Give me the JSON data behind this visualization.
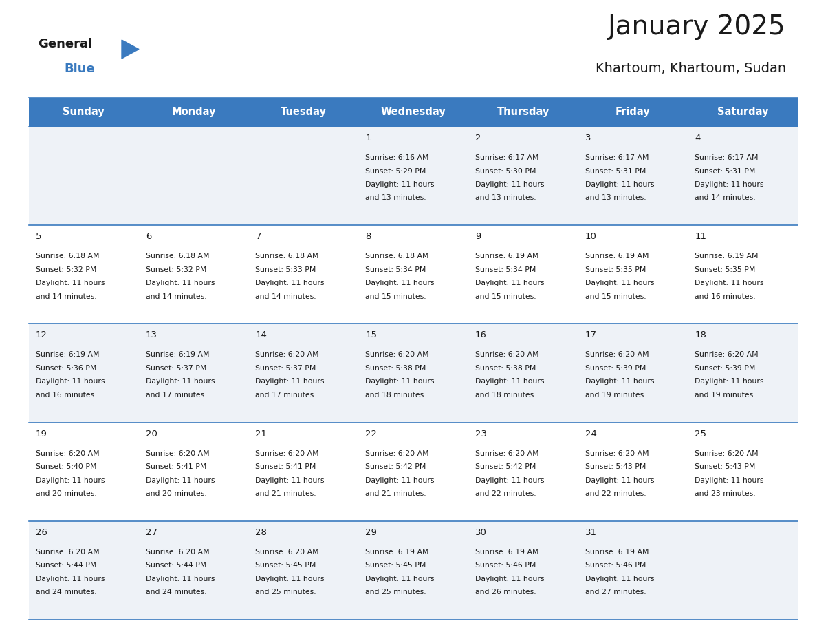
{
  "title": "January 2025",
  "subtitle": "Khartoum, Khartoum, Sudan",
  "header_bg": "#3a7abf",
  "header_text": "#ffffff",
  "row_bg_odd": "#eef2f7",
  "row_bg_even": "#ffffff",
  "cell_border_color": "#3a7abf",
  "text_color": "#1a1a1a",
  "day_headers": [
    "Sunday",
    "Monday",
    "Tuesday",
    "Wednesday",
    "Thursday",
    "Friday",
    "Saturday"
  ],
  "calendar": [
    [
      null,
      null,
      null,
      {
        "day": 1,
        "sunrise": "6:16 AM",
        "sunset": "5:29 PM",
        "daylight": "11 hours and 13 minutes"
      },
      {
        "day": 2,
        "sunrise": "6:17 AM",
        "sunset": "5:30 PM",
        "daylight": "11 hours and 13 minutes"
      },
      {
        "day": 3,
        "sunrise": "6:17 AM",
        "sunset": "5:31 PM",
        "daylight": "11 hours and 13 minutes"
      },
      {
        "day": 4,
        "sunrise": "6:17 AM",
        "sunset": "5:31 PM",
        "daylight": "11 hours and 14 minutes"
      }
    ],
    [
      {
        "day": 5,
        "sunrise": "6:18 AM",
        "sunset": "5:32 PM",
        "daylight": "11 hours and 14 minutes"
      },
      {
        "day": 6,
        "sunrise": "6:18 AM",
        "sunset": "5:32 PM",
        "daylight": "11 hours and 14 minutes"
      },
      {
        "day": 7,
        "sunrise": "6:18 AM",
        "sunset": "5:33 PM",
        "daylight": "11 hours and 14 minutes"
      },
      {
        "day": 8,
        "sunrise": "6:18 AM",
        "sunset": "5:34 PM",
        "daylight": "11 hours and 15 minutes"
      },
      {
        "day": 9,
        "sunrise": "6:19 AM",
        "sunset": "5:34 PM",
        "daylight": "11 hours and 15 minutes"
      },
      {
        "day": 10,
        "sunrise": "6:19 AM",
        "sunset": "5:35 PM",
        "daylight": "11 hours and 15 minutes"
      },
      {
        "day": 11,
        "sunrise": "6:19 AM",
        "sunset": "5:35 PM",
        "daylight": "11 hours and 16 minutes"
      }
    ],
    [
      {
        "day": 12,
        "sunrise": "6:19 AM",
        "sunset": "5:36 PM",
        "daylight": "11 hours and 16 minutes"
      },
      {
        "day": 13,
        "sunrise": "6:19 AM",
        "sunset": "5:37 PM",
        "daylight": "11 hours and 17 minutes"
      },
      {
        "day": 14,
        "sunrise": "6:20 AM",
        "sunset": "5:37 PM",
        "daylight": "11 hours and 17 minutes"
      },
      {
        "day": 15,
        "sunrise": "6:20 AM",
        "sunset": "5:38 PM",
        "daylight": "11 hours and 18 minutes"
      },
      {
        "day": 16,
        "sunrise": "6:20 AM",
        "sunset": "5:38 PM",
        "daylight": "11 hours and 18 minutes"
      },
      {
        "day": 17,
        "sunrise": "6:20 AM",
        "sunset": "5:39 PM",
        "daylight": "11 hours and 19 minutes"
      },
      {
        "day": 18,
        "sunrise": "6:20 AM",
        "sunset": "5:39 PM",
        "daylight": "11 hours and 19 minutes"
      }
    ],
    [
      {
        "day": 19,
        "sunrise": "6:20 AM",
        "sunset": "5:40 PM",
        "daylight": "11 hours and 20 minutes"
      },
      {
        "day": 20,
        "sunrise": "6:20 AM",
        "sunset": "5:41 PM",
        "daylight": "11 hours and 20 minutes"
      },
      {
        "day": 21,
        "sunrise": "6:20 AM",
        "sunset": "5:41 PM",
        "daylight": "11 hours and 21 minutes"
      },
      {
        "day": 22,
        "sunrise": "6:20 AM",
        "sunset": "5:42 PM",
        "daylight": "11 hours and 21 minutes"
      },
      {
        "day": 23,
        "sunrise": "6:20 AM",
        "sunset": "5:42 PM",
        "daylight": "11 hours and 22 minutes"
      },
      {
        "day": 24,
        "sunrise": "6:20 AM",
        "sunset": "5:43 PM",
        "daylight": "11 hours and 22 minutes"
      },
      {
        "day": 25,
        "sunrise": "6:20 AM",
        "sunset": "5:43 PM",
        "daylight": "11 hours and 23 minutes"
      }
    ],
    [
      {
        "day": 26,
        "sunrise": "6:20 AM",
        "sunset": "5:44 PM",
        "daylight": "11 hours and 24 minutes"
      },
      {
        "day": 27,
        "sunrise": "6:20 AM",
        "sunset": "5:44 PM",
        "daylight": "11 hours and 24 minutes"
      },
      {
        "day": 28,
        "sunrise": "6:20 AM",
        "sunset": "5:45 PM",
        "daylight": "11 hours and 25 minutes"
      },
      {
        "day": 29,
        "sunrise": "6:19 AM",
        "sunset": "5:45 PM",
        "daylight": "11 hours and 25 minutes"
      },
      {
        "day": 30,
        "sunrise": "6:19 AM",
        "sunset": "5:46 PM",
        "daylight": "11 hours and 26 minutes"
      },
      {
        "day": 31,
        "sunrise": "6:19 AM",
        "sunset": "5:46 PM",
        "daylight": "11 hours and 27 minutes"
      },
      null
    ]
  ],
  "logo_general_color": "#1a1a1a",
  "logo_blue_color": "#3a7abf",
  "logo_triangle_color": "#3a7abf"
}
